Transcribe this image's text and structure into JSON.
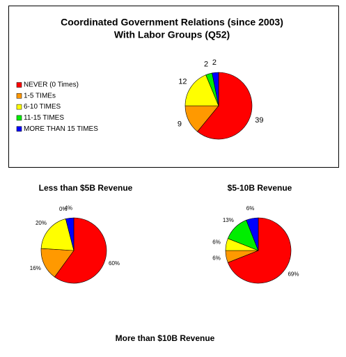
{
  "chart_data": [
    {
      "type": "pie",
      "title": [
        "Coordinated Government Relations (since 2003)",
        "With Labor Groups (Q52)"
      ],
      "categories": [
        "NEVER (0 Times)",
        "1-5 TIMEs",
        "6-10 TIMES",
        "11-15 TIMES",
        "MORE THAN 15 TIMES"
      ],
      "values": [
        39,
        9,
        12,
        2,
        2
      ],
      "colors": [
        "#ff0000",
        "#ff9900",
        "#ffff00",
        "#00ee00",
        "#0000ff"
      ],
      "legend": "left"
    },
    {
      "type": "pie",
      "title": "Less than $5B Revenue",
      "values": [
        60,
        16,
        20,
        0,
        4
      ],
      "value_labels": [
        "60%",
        "16%",
        "20%",
        "0%",
        "4%"
      ],
      "colors": [
        "#ff0000",
        "#ff9900",
        "#ffff00",
        "#00ee00",
        "#0000ff"
      ]
    },
    {
      "type": "pie",
      "title": "$5-10B Revenue",
      "values": [
        69,
        6,
        6,
        13,
        6
      ],
      "value_labels": [
        "69%",
        "6%",
        "6%",
        "13%",
        "6%"
      ],
      "colors": [
        "#ff0000",
        "#ff9900",
        "#ffff00",
        "#00ee00",
        "#0000ff"
      ]
    },
    {
      "type": "pie",
      "title": "More than $10B Revenue"
    }
  ]
}
